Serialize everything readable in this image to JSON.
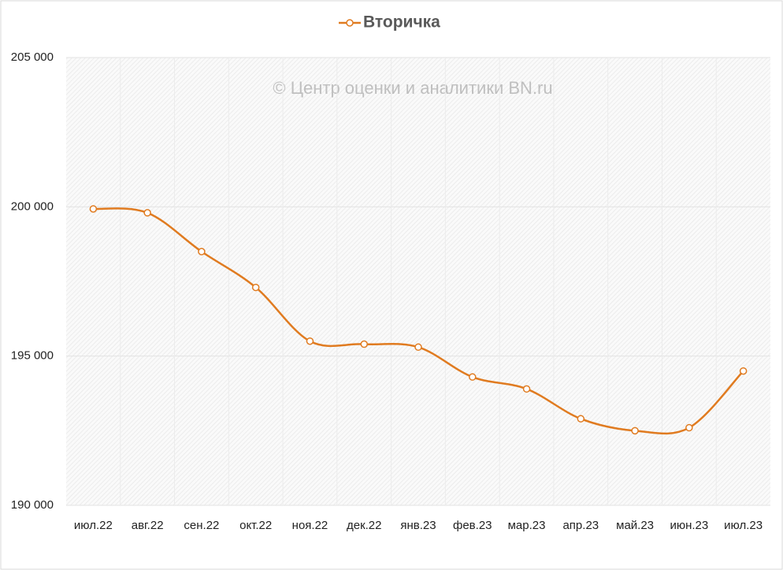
{
  "chart_data": {
    "type": "line",
    "annotation": "© Центр оценки и аналитики BN.ru",
    "categories": [
      "июл.22",
      "авг.22",
      "сен.22",
      "окт.22",
      "ноя.22",
      "дек.22",
      "янв.23",
      "фев.23",
      "мар.23",
      "апр.23",
      "май.23",
      "июн.23",
      "июл.23"
    ],
    "series": [
      {
        "name": "Вторичка",
        "color": "#e07b20",
        "values": [
          199930,
          199800,
          198500,
          197300,
          195500,
          195400,
          195300,
          194300,
          193900,
          192900,
          192500,
          192600,
          194500
        ]
      }
    ],
    "ylim": [
      190000,
      205000
    ],
    "yticks": [
      {
        "value": 190000,
        "label": "190 000"
      },
      {
        "value": 195000,
        "label": "195 000"
      },
      {
        "value": 200000,
        "label": "200 000"
      },
      {
        "value": 205000,
        "label": "205 000"
      }
    ],
    "grid": true,
    "legend": "top",
    "smooth": true
  }
}
